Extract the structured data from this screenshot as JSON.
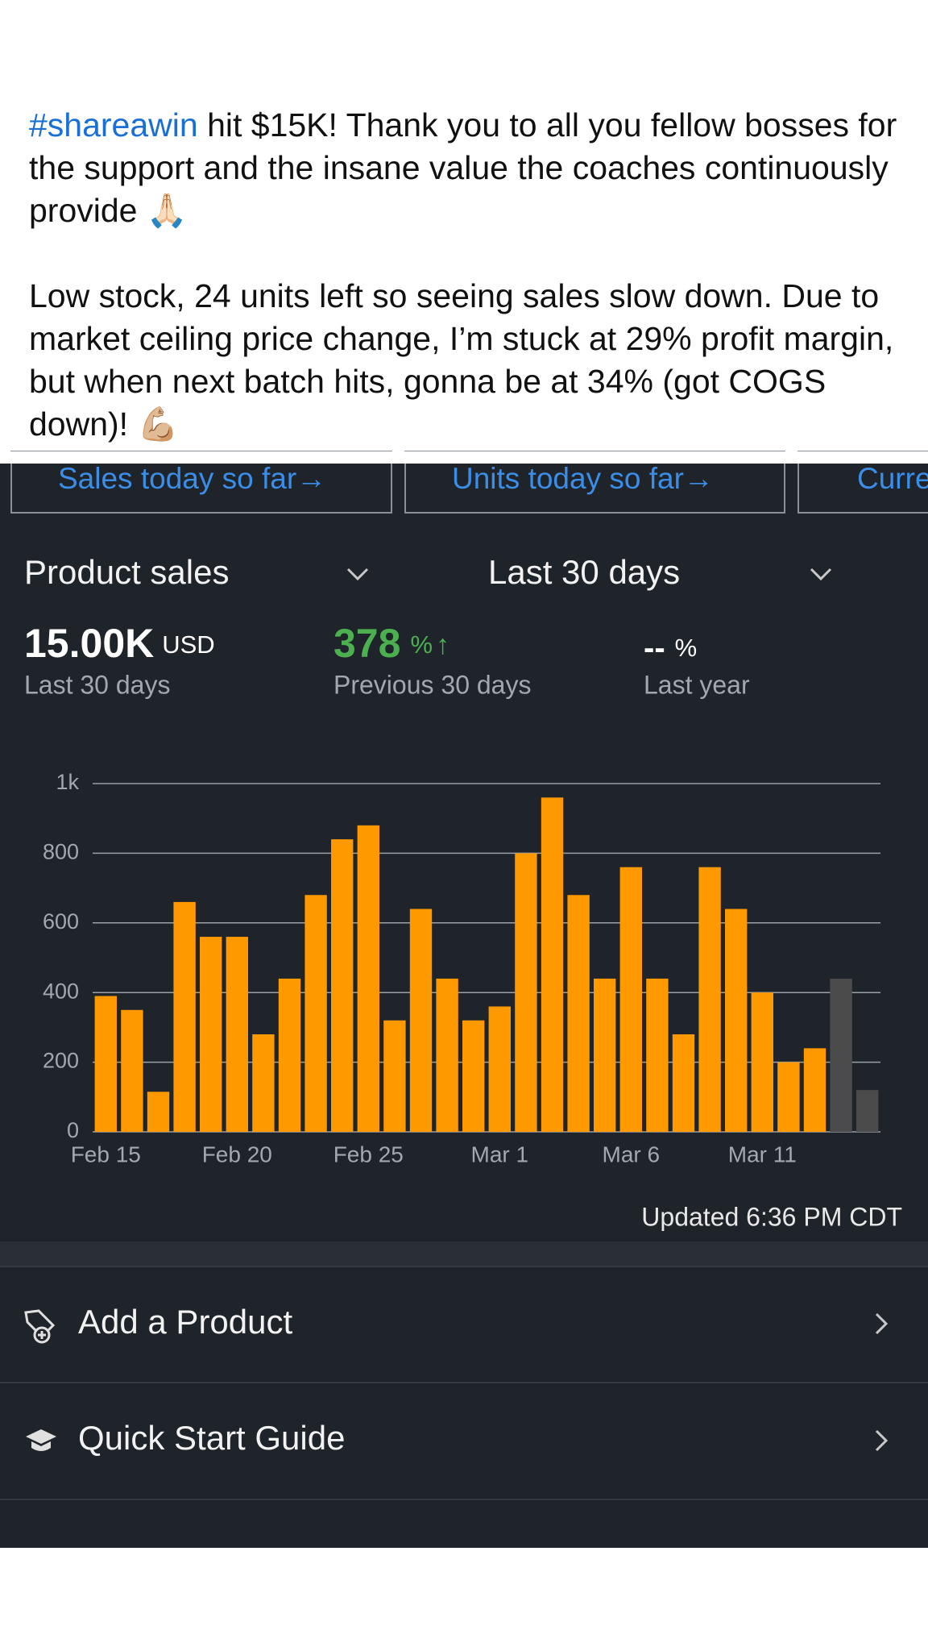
{
  "post": {
    "hashtag": "#shareawin",
    "text_1": " hit $15K! Thank you to all you fellow bosses for the support and the insane value the coaches continuously provide 🙏🏻",
    "text_2": "Low stock, 24 units left so seeing sales slow down. Due to market ceiling price change, I’m stuck at 29% profit margin, but when next batch hits, gonna be at 34% (got COGS down)! 💪🏼"
  },
  "tabs": [
    "Sales today so far→",
    "Units today so far→",
    "Curre"
  ],
  "selectors": [
    "Product sales",
    "Last 30 days"
  ],
  "stats": [
    {
      "value": "15.00K",
      "unit": "USD",
      "label": "Last 30 days"
    },
    {
      "value": "378",
      "unit": "%",
      "arrow": "↑",
      "label": "Previous 30 days"
    },
    {
      "value": "--",
      "unit": "%",
      "label": "Last year"
    }
  ],
  "chart_data": {
    "type": "bar",
    "categories": [
      "Feb 15",
      null,
      null,
      null,
      null,
      "Feb 20",
      null,
      null,
      null,
      null,
      "Feb 25",
      null,
      null,
      null,
      null,
      "Mar 1",
      null,
      null,
      null,
      null,
      "Mar 6",
      null,
      null,
      null,
      null,
      "Mar 11",
      null,
      null,
      null,
      null
    ],
    "values": [
      390,
      350,
      115,
      660,
      560,
      560,
      280,
      440,
      680,
      840,
      880,
      320,
      640,
      440,
      320,
      360,
      800,
      960,
      680,
      440,
      760,
      440,
      280,
      760,
      640,
      400,
      200,
      240,
      440,
      120
    ],
    "colors": [
      "#ff9900",
      "#ff9900",
      "#ff9900",
      "#ff9900",
      "#ff9900",
      "#ff9900",
      "#ff9900",
      "#ff9900",
      "#ff9900",
      "#ff9900",
      "#ff9900",
      "#ff9900",
      "#ff9900",
      "#ff9900",
      "#ff9900",
      "#ff9900",
      "#ff9900",
      "#ff9900",
      "#ff9900",
      "#ff9900",
      "#ff9900",
      "#ff9900",
      "#ff9900",
      "#ff9900",
      "#ff9900",
      "#ff9900",
      "#ff9900",
      "#ff9900",
      "#4b4b4b",
      "#4b4b4b"
    ],
    "ylim": [
      0,
      1000
    ],
    "yticks": [
      0,
      200,
      400,
      600,
      800,
      {
        "value": 1000,
        "label": "1k"
      }
    ],
    "grid": true
  },
  "updated": "Updated 6:36 PM CDT",
  "menu": [
    "Add a Product",
    "Quick Start Guide"
  ]
}
